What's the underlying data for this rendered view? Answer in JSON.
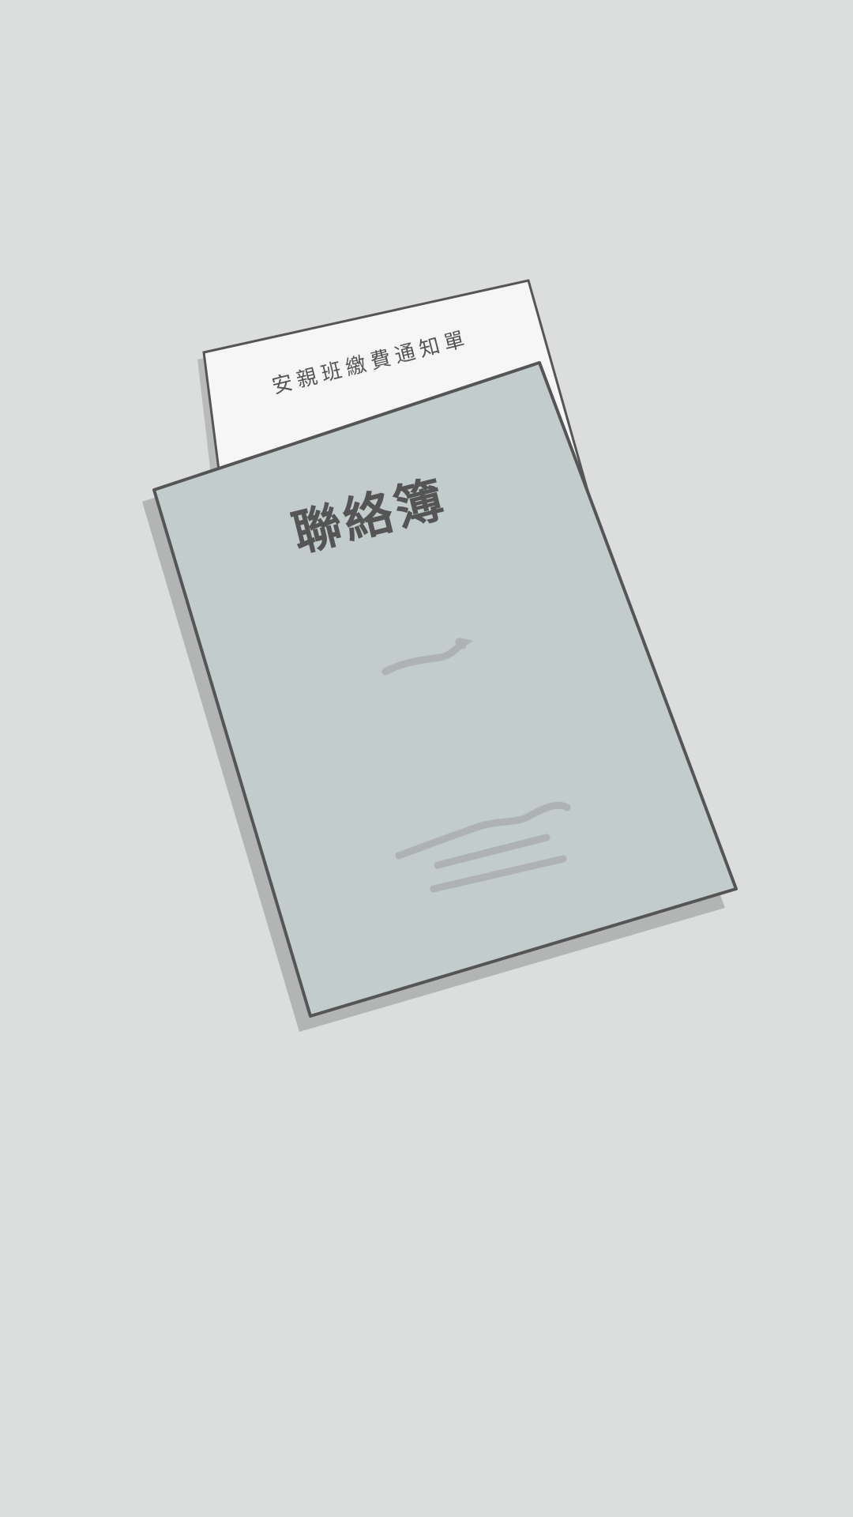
{
  "illustration": {
    "notice_slip": {
      "label": "安親班繳費通知單"
    },
    "contact_book": {
      "title": "聯絡簿"
    }
  },
  "colors": {
    "background": "#dbdedd",
    "notice_paper": "#f6f6f6",
    "book_cover": "#c3cccd",
    "outline": "#555555",
    "shadow": "#b3b5b4",
    "scribble": "#aeb2b3"
  }
}
